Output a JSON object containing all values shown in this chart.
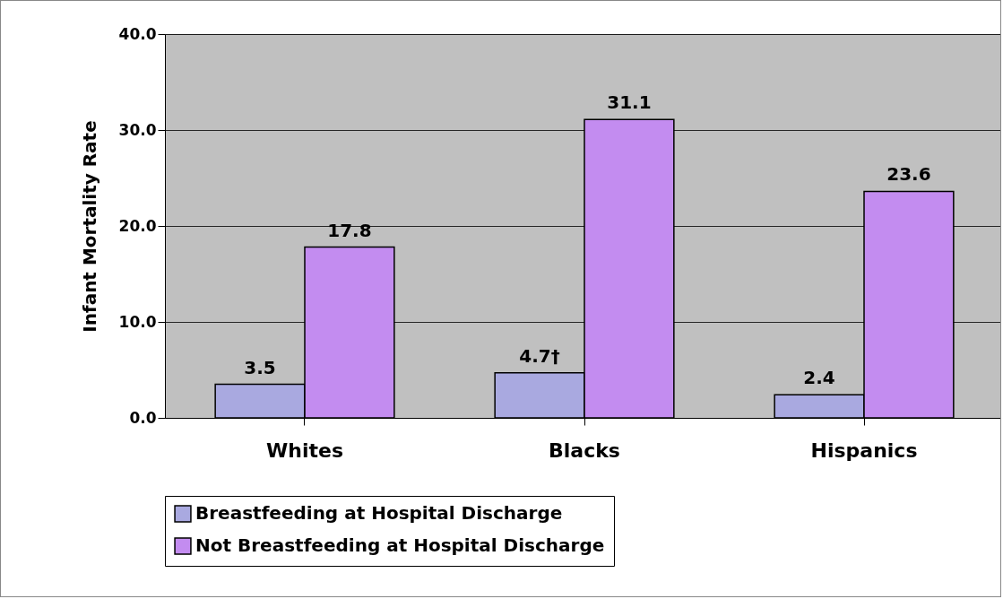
{
  "chart_data": {
    "type": "bar",
    "ylabel": "Infant Mortality Rate",
    "categories": [
      "Whites",
      "Blacks",
      "Hispanics"
    ],
    "series": [
      {
        "name": "Breastfeeding at Hospital Discharge",
        "color": "#a9a9e0",
        "values": [
          3.5,
          4.7,
          2.4
        ],
        "value_labels": [
          "3.5",
          "4.7†",
          "2.4"
        ]
      },
      {
        "name": "Not Breastfeeding at Hospital Discharge",
        "color": "#c38cf0",
        "values": [
          17.8,
          31.1,
          23.6
        ],
        "value_labels": [
          "17.8",
          "31.1",
          "23.6"
        ]
      }
    ],
    "ylim": [
      0,
      40
    ],
    "yticks": [
      {
        "value": 0,
        "label": "0.0"
      },
      {
        "value": 10,
        "label": "10.0"
      },
      {
        "value": 20,
        "label": "20.0"
      },
      {
        "value": 30,
        "label": "30.0"
      },
      {
        "value": 40,
        "label": "40.0"
      }
    ],
    "grid": "y",
    "legend": "bottom"
  }
}
